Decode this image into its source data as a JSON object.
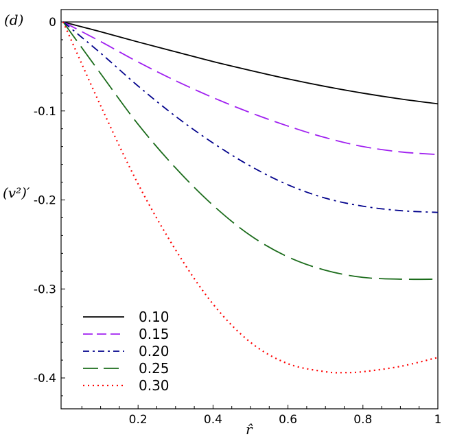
{
  "chart_data": {
    "type": "line",
    "panel_label": "(d)",
    "title": "",
    "xlabel": "r̂",
    "ylabel": "(v²)′",
    "xlim": [
      0,
      1
    ],
    "ylim": [
      -0.44,
      0.013
    ],
    "x_ticks": [
      0.2,
      0.4,
      0.6,
      0.8,
      1
    ],
    "x_tick_labels": [
      "0.2",
      "0.4",
      "0.6",
      "0.8",
      "1"
    ],
    "y_ticks": [
      0,
      -0.1,
      -0.2,
      -0.3,
      -0.4
    ],
    "y_tick_labels": [
      "0",
      "-0.1",
      "-0.2",
      "-0.3",
      "-0.4"
    ],
    "grid": false,
    "legend_position": "bottom-left",
    "series": [
      {
        "name": "0.10",
        "color": "#000000",
        "style": "solid",
        "x": [
          0,
          0.1,
          0.2,
          0.3,
          0.4,
          0.5,
          0.6,
          0.7,
          0.8,
          0.9,
          1.0
        ],
        "y": [
          0,
          -0.011,
          -0.0225,
          -0.0335,
          -0.0445,
          -0.0545,
          -0.064,
          -0.0725,
          -0.08,
          -0.0865,
          -0.092
        ]
      },
      {
        "name": "0.15",
        "color": "#a020f0",
        "style": "dash",
        "x": [
          0,
          0.1,
          0.2,
          0.3,
          0.4,
          0.5,
          0.6,
          0.7,
          0.8,
          0.9,
          1.0
        ],
        "y": [
          0,
          -0.022,
          -0.045,
          -0.066,
          -0.085,
          -0.102,
          -0.117,
          -0.13,
          -0.14,
          -0.146,
          -0.149
        ]
      },
      {
        "name": "0.20",
        "color": "#00008b",
        "style": "dashdot",
        "x": [
          0,
          0.1,
          0.2,
          0.3,
          0.4,
          0.5,
          0.6,
          0.7,
          0.8,
          0.9,
          1.0
        ],
        "y": [
          0,
          -0.035,
          -0.072,
          -0.106,
          -0.136,
          -0.162,
          -0.183,
          -0.198,
          -0.207,
          -0.212,
          -0.214
        ]
      },
      {
        "name": "0.25",
        "color": "#1a6b1a",
        "style": "longdash",
        "x": [
          0,
          0.1,
          0.2,
          0.3,
          0.4,
          0.5,
          0.6,
          0.7,
          0.8,
          0.9,
          1.0
        ],
        "y": [
          0,
          -0.058,
          -0.115,
          -0.164,
          -0.206,
          -0.24,
          -0.264,
          -0.279,
          -0.287,
          -0.289,
          -0.289
        ]
      },
      {
        "name": "0.30",
        "color": "#ff0000",
        "style": "dotted",
        "x": [
          0,
          0.1,
          0.2,
          0.3,
          0.4,
          0.5,
          0.6,
          0.7,
          0.75,
          0.8,
          0.9,
          1.0
        ],
        "y": [
          0,
          -0.094,
          -0.182,
          -0.256,
          -0.317,
          -0.36,
          -0.384,
          -0.393,
          -0.394,
          -0.393,
          -0.387,
          -0.377
        ]
      }
    ]
  }
}
